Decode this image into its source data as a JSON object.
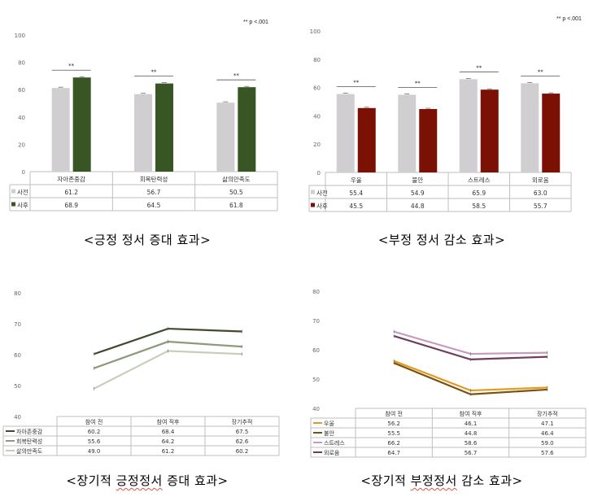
{
  "significance_note": "** p <.001",
  "sig_marker": "**",
  "captions": {
    "c1": "<긍정 정서 증대 효과>",
    "c2": "<부정 정서 감소 효과>",
    "c3_pre": "<장기적 ",
    "c3_wavy": "긍정정서",
    "c3_post": " 증대 효과>",
    "c4_pre": "<장기적 ",
    "c4_wavy": "부정정서",
    "c4_post": " 감소 효과>"
  },
  "chart_data": [
    {
      "type": "bar",
      "categories": [
        "자아존중감",
        "회복탄력성",
        "삶의만족도"
      ],
      "series": [
        {
          "name": "사전",
          "values": [
            61.2,
            56.7,
            50.5
          ],
          "color": "#d0ced0"
        },
        {
          "name": "사후",
          "values": [
            68.9,
            64.5,
            61.8
          ],
          "color": "#375623"
        }
      ],
      "ylim": [
        0,
        100
      ],
      "yticks": [
        0,
        20,
        40,
        60,
        80,
        100
      ],
      "significance": [
        "**",
        "**",
        "**"
      ]
    },
    {
      "type": "bar",
      "categories": [
        "우울",
        "불안",
        "스트레스",
        "외로움"
      ],
      "series": [
        {
          "name": "사전",
          "values": [
            55.4,
            54.9,
            65.9,
            63.0
          ],
          "labels": [
            "55.4",
            "54.9",
            "65.9",
            "63.0"
          ],
          "color": "#d0ced0"
        },
        {
          "name": "사후",
          "values": [
            45.5,
            44.8,
            58.5,
            55.7
          ],
          "labels": [
            "45.5",
            "44.8",
            "58.5",
            "55.7"
          ],
          "color": "#7b1005"
        }
      ],
      "ylim": [
        0,
        100
      ],
      "yticks": [
        0,
        20,
        40,
        60,
        80,
        100
      ],
      "significance": [
        "**",
        "**",
        "**",
        "**"
      ]
    },
    {
      "type": "line",
      "categories": [
        "참여 전",
        "참여 직후",
        "장기추적"
      ],
      "series": [
        {
          "name": "자아존중감",
          "values": [
            60.2,
            68.4,
            67.5
          ],
          "color": "#3f4a2e"
        },
        {
          "name": "회복탄력성",
          "values": [
            55.6,
            64.2,
            62.6
          ],
          "color": "#8e9a7b"
        },
        {
          "name": "삶의만족도",
          "values": [
            49.0,
            61.2,
            60.2
          ],
          "color": "#c7cdb9"
        }
      ],
      "ylim": [
        40,
        80
      ],
      "yticks": [
        40,
        50,
        60,
        70,
        80
      ]
    },
    {
      "type": "line",
      "categories": [
        "참여 전",
        "참여 직후",
        "장기추적"
      ],
      "series": [
        {
          "name": "우울",
          "values": [
            56.2,
            46.1,
            47.1
          ],
          "labels": [
            "56.2",
            "46.1",
            "47.1"
          ],
          "color": "#e39a1f"
        },
        {
          "name": "불안",
          "values": [
            55.5,
            44.8,
            46.4
          ],
          "labels": [
            "55.5",
            "44.8",
            "46.4"
          ],
          "color": "#7a5210"
        },
        {
          "name": "스트레스",
          "values": [
            66.2,
            58.6,
            59.0
          ],
          "labels": [
            "66.2",
            "58.6",
            "59.0"
          ],
          "color": "#c79bc0"
        },
        {
          "name": "외로움",
          "values": [
            64.7,
            56.7,
            57.6
          ],
          "labels": [
            "64.7",
            "56.7",
            "57.6"
          ],
          "color": "#6e3d5e"
        }
      ],
      "ylim": [
        40,
        80
      ],
      "yticks": [
        40,
        50,
        60,
        70,
        80
      ]
    }
  ]
}
